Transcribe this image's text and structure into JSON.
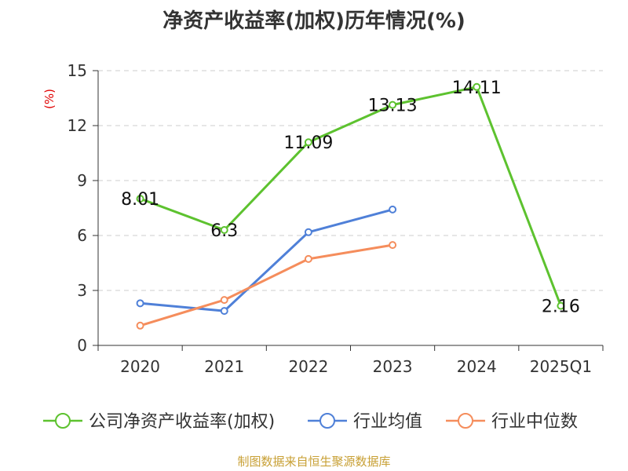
{
  "chart_data": {
    "type": "line",
    "title": "净资产收益率(加权)历年情况(%)",
    "ylabel": "(%)",
    "xlabel": "",
    "categories": [
      "2020",
      "2021",
      "2022",
      "2023",
      "2024",
      "2025Q1"
    ],
    "ylim": [
      0,
      15
    ],
    "yticks": [
      0,
      3,
      6,
      9,
      12,
      15
    ],
    "grid": true,
    "legend_position": "bottom",
    "series": [
      {
        "name": "公司净资产收益率(加权)",
        "color": "#5dc22f",
        "values": [
          8.01,
          6.3,
          11.09,
          13.13,
          14.11,
          2.16
        ],
        "labels": [
          "8.01",
          "6.3",
          "11.09",
          "13.13",
          "14.11",
          "2.16"
        ]
      },
      {
        "name": "行业均值",
        "color": "#4f80d8",
        "values": [
          2.3,
          1.88,
          6.18,
          7.42,
          null,
          null
        ]
      },
      {
        "name": "行业中位数",
        "color": "#f58d5c",
        "values": [
          1.08,
          2.48,
          4.72,
          5.48,
          null,
          null
        ]
      }
    ]
  },
  "source": "制图数据来自恒生聚源数据库"
}
